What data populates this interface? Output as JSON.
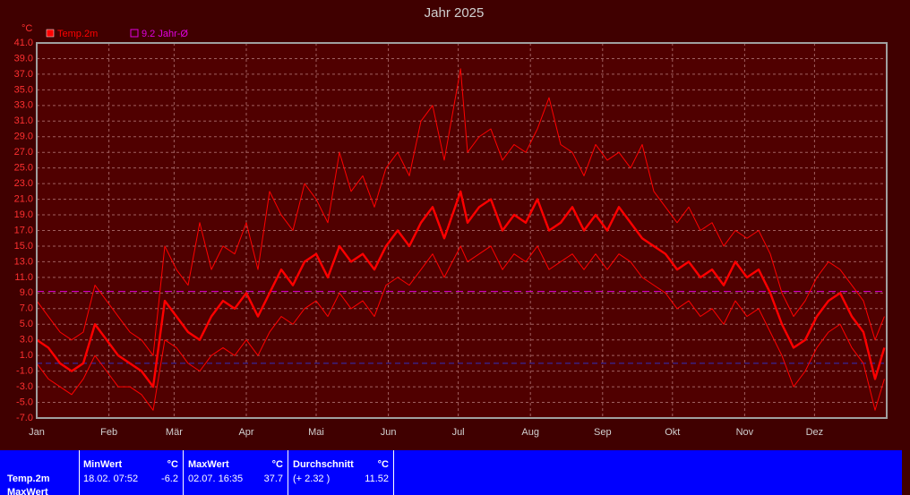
{
  "chart_data": {
    "type": "line",
    "title": "Jahr 2025",
    "y_unit": "°C",
    "x": [
      0,
      5,
      10,
      15,
      20,
      25,
      30,
      35,
      40,
      45,
      50,
      55,
      60,
      65,
      70,
      75,
      80,
      85,
      90,
      95,
      100,
      105,
      110,
      115,
      120,
      125,
      130,
      135,
      140,
      145,
      150,
      155,
      160,
      165,
      170,
      175,
      182,
      185,
      190,
      195,
      200,
      205,
      210,
      215,
      220,
      225,
      230,
      235,
      240,
      245,
      250,
      255,
      260,
      265,
      270,
      275,
      280,
      285,
      290,
      295,
      300,
      305,
      310,
      315,
      320,
      325,
      330,
      335,
      340,
      345,
      350,
      355,
      360,
      364
    ],
    "series": [
      {
        "name": "Temp.2m",
        "color": "#ff0000",
        "values": [
          3,
          2,
          0,
          -1,
          0,
          5,
          3,
          1,
          0,
          -1,
          -3,
          8,
          6,
          4,
          3,
          6,
          8,
          7,
          9,
          6,
          9,
          12,
          10,
          13,
          14,
          11,
          15,
          13,
          14,
          12,
          15,
          17,
          15,
          18,
          20,
          16,
          22,
          18,
          20,
          21,
          17,
          19,
          18,
          21,
          17,
          18,
          20,
          17,
          19,
          17,
          20,
          18,
          16,
          15,
          14,
          12,
          13,
          11,
          12,
          10,
          13,
          11,
          12,
          9,
          5,
          2,
          3,
          6,
          8,
          9,
          6,
          4,
          -2,
          2
        ],
        "min": [
          0,
          -2,
          -3,
          -4,
          -2,
          1,
          -1,
          -3,
          -3,
          -4,
          -6,
          3,
          2,
          0,
          -1,
          1,
          2,
          1,
          3,
          1,
          4,
          6,
          5,
          7,
          8,
          6,
          9,
          7,
          8,
          6,
          10,
          11,
          10,
          12,
          14,
          11,
          15,
          13,
          14,
          15,
          12,
          14,
          13,
          15,
          12,
          13,
          14,
          12,
          14,
          12,
          14,
          13,
          11,
          10,
          9,
          7,
          8,
          6,
          7,
          5,
          8,
          6,
          7,
          4,
          1,
          -3,
          -1,
          2,
          4,
          5,
          2,
          0,
          -6,
          -2
        ],
        "max": [
          8,
          6,
          4,
          3,
          4,
          10,
          8,
          6,
          4,
          3,
          1,
          15,
          12,
          10,
          18,
          12,
          15,
          14,
          18,
          12,
          22,
          19,
          17,
          23,
          21,
          18,
          27,
          22,
          24,
          20,
          25,
          27,
          24,
          31,
          33,
          26,
          37.7,
          27,
          29,
          30,
          26,
          28,
          27,
          30,
          34,
          28,
          27,
          24,
          28,
          26,
          27,
          25,
          28,
          22,
          20,
          18,
          20,
          17,
          18,
          15,
          17,
          16,
          17,
          14,
          9,
          6,
          8,
          11,
          13,
          12,
          10,
          8,
          3,
          6
        ]
      }
    ],
    "reference": {
      "name": "9.2 Jahr-Ø",
      "value": 9.2,
      "color": "#e000e0"
    },
    "baseline": {
      "value": 0,
      "color": "#3030c0"
    },
    "xlim": [
      0,
      365
    ],
    "xticks": [
      {
        "value": 0,
        "label": "Jan"
      },
      {
        "value": 31,
        "label": "Feb"
      },
      {
        "value": 59,
        "label": "Mär"
      },
      {
        "value": 90,
        "label": "Apr"
      },
      {
        "value": 120,
        "label": "Mai"
      },
      {
        "value": 151,
        "label": "Jun"
      },
      {
        "value": 181,
        "label": "Jul"
      },
      {
        "value": 212,
        "label": "Aug"
      },
      {
        "value": 243,
        "label": "Sep"
      },
      {
        "value": 273,
        "label": "Okt"
      },
      {
        "value": 304,
        "label": "Nov"
      },
      {
        "value": 334,
        "label": "Dez"
      }
    ],
    "ylim": [
      -7,
      41
    ],
    "yticks": [
      {
        "value": -7,
        "label": "-7.0"
      },
      {
        "value": -5,
        "label": "-5.0"
      },
      {
        "value": -3,
        "label": "-3.0"
      },
      {
        "value": -1,
        "label": "-1.0"
      },
      {
        "value": 1,
        "label": "1.0"
      },
      {
        "value": 3,
        "label": "3.0"
      },
      {
        "value": 5,
        "label": "5.0"
      },
      {
        "value": 7,
        "label": "7.0"
      },
      {
        "value": 9,
        "label": "9.0"
      },
      {
        "value": 11,
        "label": "11.0"
      },
      {
        "value": 13,
        "label": "13.0"
      },
      {
        "value": 15,
        "label": "15.0"
      },
      {
        "value": 17,
        "label": "17.0"
      },
      {
        "value": 19,
        "label": "19.0"
      },
      {
        "value": 21,
        "label": "21.0"
      },
      {
        "value": 23,
        "label": "23.0"
      },
      {
        "value": 25,
        "label": "25.0"
      },
      {
        "value": 27,
        "label": "27.0"
      },
      {
        "value": 29,
        "label": "29.0"
      },
      {
        "value": 31,
        "label": "31.0"
      },
      {
        "value": 33,
        "label": "33.0"
      },
      {
        "value": 35,
        "label": "35.0"
      },
      {
        "value": 37,
        "label": "37.0"
      },
      {
        "value": 39,
        "label": "39.0"
      },
      {
        "value": 41,
        "label": "41.0"
      }
    ],
    "grid": true
  },
  "table": {
    "row_label": "Temp.2m",
    "row_label_next": "MaxWert",
    "columns": [
      {
        "title": "MinWert",
        "unit": "°C",
        "when": "18.02. 07:52",
        "value": "-6.2"
      },
      {
        "title": "MaxWert",
        "unit": "°C",
        "when": "02.07. 16:35",
        "value": "37.7"
      },
      {
        "title": "Durchschnitt",
        "unit": "°C",
        "when": "(+ 2.32 )",
        "value": "11.52"
      }
    ]
  }
}
